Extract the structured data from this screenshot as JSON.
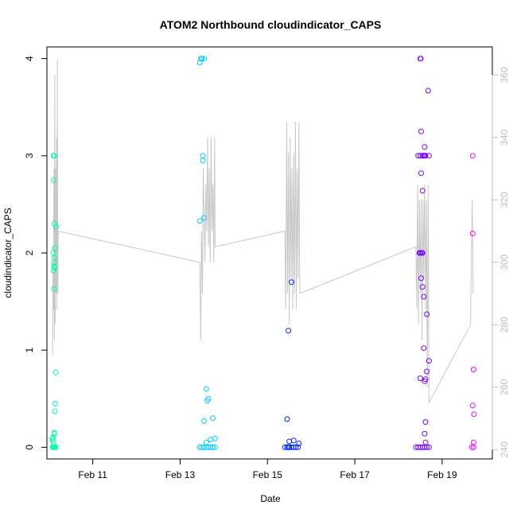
{
  "chart_data": {
    "type": "scatter",
    "title": "ATOM2 Northbound cloudindicator_CAPS",
    "xlabel": "Date",
    "ylabel": "cloudindicator_CAPS",
    "x_ticks": [
      {
        "value": 11,
        "label": "Feb 11"
      },
      {
        "value": 13,
        "label": "Feb 13"
      },
      {
        "value": 15,
        "label": "Feb 15"
      },
      {
        "value": 17,
        "label": "Feb 17"
      },
      {
        "value": 19,
        "label": "Feb 19"
      }
    ],
    "xlim": [
      9.95,
      20.15
    ],
    "ylim": [
      -0.12,
      4.12
    ],
    "y_ticks": [
      0,
      1,
      2,
      3,
      4
    ],
    "y2_ticks": [
      240,
      260,
      280,
      300,
      320,
      340,
      360
    ],
    "y2lim": [
      237,
      369
    ],
    "grid": false,
    "secondary_line_color": "#c8c8c8",
    "point_colors": [
      "#00ffaa",
      "#00ccff",
      "#0022ff",
      "#7700ff",
      "#ff00ff"
    ],
    "series": [
      {
        "color": "#00ffaa",
        "x": [
          10.1,
          10.12,
          10.16,
          10.1,
          10.1,
          10.12,
          10.11,
          10.12,
          10.13,
          10.13,
          10.1,
          10.11,
          10.11,
          10.15,
          10.14,
          10.13,
          10.08,
          10.08,
          10.09,
          10.1,
          10.12,
          10.12,
          10.11,
          10.12,
          10.13,
          10.08,
          10.1,
          10.15
        ],
        "y": [
          3.0,
          3.0,
          2.27,
          2.75,
          2.0,
          2.3,
          1.9,
          1.95,
          2.05,
          1.85,
          1.82,
          1.86,
          1.63,
          0.77,
          0.45,
          0.37,
          0.09,
          0.07,
          0.1,
          0.05,
          0.15,
          0.14,
          0.0,
          0.0,
          0.0,
          0.0,
          0.0,
          0.0
        ]
      },
      {
        "color": "#00ccff",
        "x": [
          13.45,
          13.5,
          13.55,
          13.48,
          13.52,
          13.45,
          13.55,
          13.52,
          13.6,
          13.75,
          13.65,
          13.55,
          13.7,
          13.6,
          13.8,
          13.45,
          13.5,
          13.55,
          13.6,
          13.65,
          13.7,
          13.75,
          13.8,
          13.62
        ],
        "y": [
          3.96,
          4.0,
          4.0,
          4.0,
          3.0,
          2.33,
          2.36,
          2.95,
          0.6,
          0.3,
          0.5,
          0.27,
          0.08,
          0.05,
          0.09,
          0.0,
          0.0,
          0.0,
          0.0,
          0.0,
          0.0,
          0.0,
          0.0,
          0.48
        ]
      },
      {
        "color": "#0022ff",
        "x": [
          15.55,
          15.48,
          15.45,
          15.5,
          15.6,
          15.72,
          15.4,
          15.45,
          15.5,
          15.55,
          15.6,
          15.65,
          15.7,
          15.48
        ],
        "y": [
          1.7,
          1.2,
          0.29,
          0.06,
          0.07,
          0.04,
          0.0,
          0.0,
          0.0,
          0.0,
          0.0,
          0.0,
          0.0,
          0.0
        ]
      },
      {
        "color": "#7700ff",
        "x": [
          18.5,
          18.51,
          18.68,
          18.52,
          18.6,
          18.5,
          18.45,
          18.55,
          18.62,
          18.58,
          18.52,
          18.55,
          18.6,
          18.7,
          18.5,
          18.53,
          18.55,
          18.48,
          18.52,
          18.55,
          18.58,
          18.65,
          18.7,
          18.58,
          18.65,
          18.62,
          18.5,
          18.6,
          18.62,
          18.6,
          18.4,
          18.45,
          18.5,
          18.55,
          18.6,
          18.65,
          18.7,
          18.62
        ],
        "y": [
          4.0,
          4.0,
          3.67,
          3.25,
          3.09,
          3.0,
          3.0,
          3.0,
          3.0,
          3.0,
          2.82,
          2.64,
          3.0,
          3.0,
          2.0,
          2.0,
          2.0,
          2.0,
          1.74,
          1.65,
          1.55,
          1.37,
          0.89,
          1.02,
          0.78,
          0.7,
          0.71,
          0.68,
          0.26,
          0.14,
          0.0,
          0.0,
          0.0,
          0.0,
          0.0,
          0.0,
          0.0,
          0.05
        ]
      },
      {
        "color": "#ff00ff",
        "x": [
          19.7,
          19.7,
          19.72,
          19.7,
          19.73,
          19.72,
          19.68,
          19.72
        ],
        "y": [
          3.0,
          2.2,
          0.8,
          0.43,
          0.34,
          0.05,
          0.0,
          0.0
        ]
      }
    ],
    "secondary_line": {
      "name": "",
      "x": [
        10.08,
        10.09,
        10.1,
        10.11,
        10.12,
        10.13,
        10.14,
        10.15,
        10.16,
        10.17,
        10.18,
        10.19,
        10.2,
        10.21,
        13.45,
        13.47,
        13.49,
        13.51,
        13.53,
        13.55,
        13.57,
        13.59,
        13.61,
        13.63,
        13.65,
        13.67,
        13.69,
        13.71,
        13.73,
        13.75,
        13.77,
        13.79,
        13.8,
        15.4,
        15.42,
        15.44,
        15.46,
        15.48,
        15.5,
        15.52,
        15.54,
        15.56,
        15.58,
        15.6,
        15.62,
        15.64,
        15.66,
        15.68,
        15.7,
        15.72,
        15.74,
        18.4,
        18.42,
        18.44,
        18.46,
        18.48,
        18.5,
        18.52,
        18.54,
        18.56,
        18.58,
        18.6,
        18.62,
        18.64,
        18.66,
        18.68,
        18.7,
        19.65,
        19.67,
        19.69,
        19.71
      ],
      "y": [
        270,
        300,
        285,
        330,
        275,
        360,
        280,
        330,
        290,
        340,
        285,
        365,
        290,
        310,
        300,
        275,
        310,
        290,
        330,
        315,
        300,
        325,
        310,
        340,
        305,
        330,
        300,
        340,
        310,
        325,
        300,
        340,
        305,
        310,
        285,
        345,
        290,
        335,
        280,
        340,
        295,
        330,
        285,
        335,
        290,
        345,
        285,
        330,
        295,
        345,
        290,
        305,
        285,
        325,
        280,
        320,
        290,
        320,
        275,
        320,
        295,
        325,
        285,
        320,
        260,
        325,
        255,
        280,
        300,
        320,
        290
      ]
    }
  }
}
